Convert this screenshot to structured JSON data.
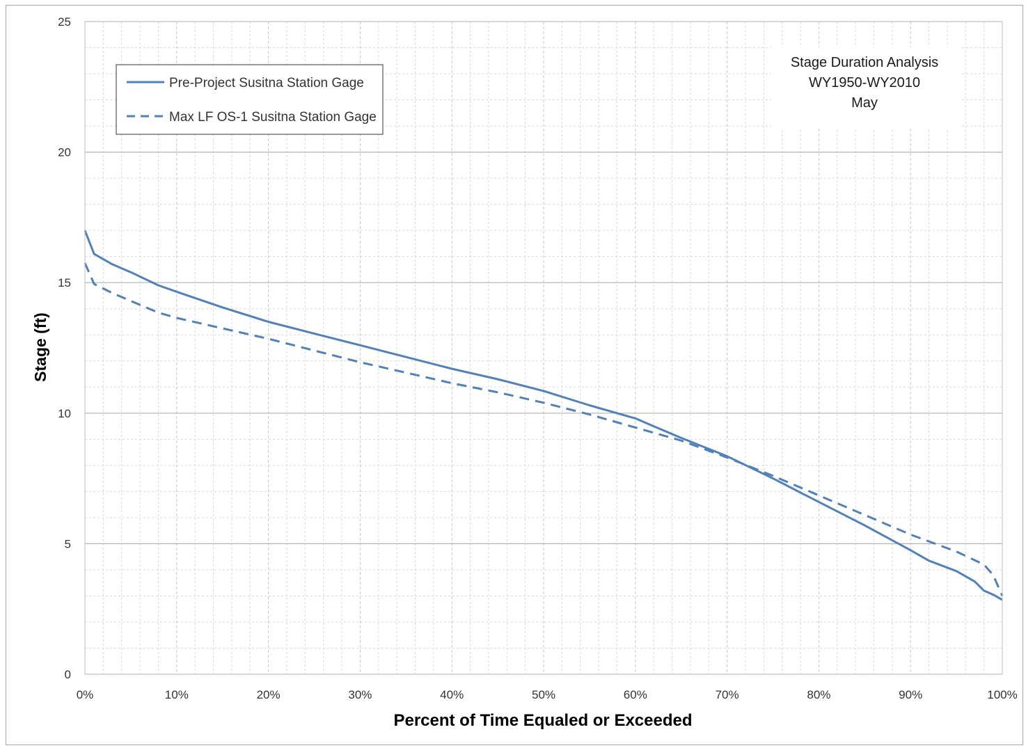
{
  "chart_data": {
    "type": "line",
    "title_lines": [
      "Stage Duration Analysis",
      "WY1950-WY2010",
      "May"
    ],
    "xlabel": "Percent of Time Equaled or Exceeded",
    "ylabel": "Stage (ft)",
    "xlim": [
      0,
      100
    ],
    "ylim": [
      0,
      25
    ],
    "x_ticks": [
      "0%",
      "10%",
      "20%",
      "30%",
      "40%",
      "50%",
      "60%",
      "70%",
      "80%",
      "90%",
      "100%"
    ],
    "y_ticks": [
      "0",
      "5",
      "10",
      "15",
      "20",
      "25"
    ],
    "grid": "major and minor",
    "legend_position": "top-left",
    "series": [
      {
        "name": "Pre-Project Susitna Station Gage",
        "style": "solid",
        "color": "#4f81bd",
        "x": [
          0,
          1,
          3,
          5,
          8,
          10,
          15,
          20,
          25,
          30,
          35,
          40,
          45,
          50,
          55,
          60,
          62,
          65,
          70,
          75,
          80,
          85,
          90,
          92,
          95,
          97,
          98,
          99,
          100
        ],
        "y": [
          17.0,
          16.1,
          15.7,
          15.4,
          14.9,
          14.65,
          14.05,
          13.5,
          13.05,
          12.6,
          12.15,
          11.7,
          11.3,
          10.85,
          10.3,
          9.8,
          9.5,
          9.05,
          8.35,
          7.5,
          6.6,
          5.7,
          4.75,
          4.35,
          3.95,
          3.55,
          3.2,
          3.05,
          2.85
        ]
      },
      {
        "name": "Max LF OS-1 Susitna Station Gage",
        "style": "dashed",
        "color": "#4f81bd",
        "x": [
          0,
          1,
          3,
          5,
          8,
          10,
          15,
          20,
          25,
          30,
          35,
          40,
          45,
          50,
          55,
          60,
          65,
          70,
          75,
          80,
          85,
          90,
          95,
          98,
          99,
          100
        ],
        "y": [
          15.75,
          14.95,
          14.6,
          14.3,
          13.85,
          13.65,
          13.25,
          12.85,
          12.4,
          11.95,
          11.55,
          11.15,
          10.8,
          10.4,
          9.95,
          9.45,
          8.95,
          8.3,
          7.6,
          6.85,
          6.1,
          5.35,
          4.7,
          4.2,
          3.8,
          3.0
        ]
      }
    ]
  }
}
